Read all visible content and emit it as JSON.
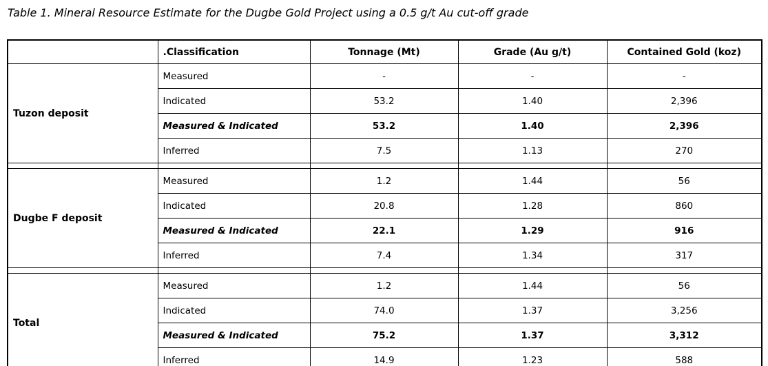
{
  "title": "Table 1. Mineral Resource Estimate for the Dugbe Gold Project using a 0.5 g/t Au cut-off grade",
  "table": {
    "columns": [
      "",
      ".Classification",
      "Tonnage (Mt)",
      "Grade (Au g/t)",
      "Contained Gold (koz)"
    ],
    "groups": [
      {
        "name": "Tuzon deposit",
        "rows": [
          {
            "classification": "Measured",
            "tonnage": "-",
            "grade": "-",
            "contained_gold": "-",
            "bold": false
          },
          {
            "classification": "Indicated",
            "tonnage": "53.2",
            "grade": "1.40",
            "contained_gold": "2,396",
            "bold": false
          },
          {
            "classification": "Measured & Indicated",
            "tonnage": "53.2",
            "grade": "1.40",
            "contained_gold": "2,396",
            "bold": true
          },
          {
            "classification": "Inferred",
            "tonnage": "7.5",
            "grade": "1.13",
            "contained_gold": "270",
            "bold": false
          }
        ]
      },
      {
        "name": "Dugbe F deposit",
        "rows": [
          {
            "classification": "Measured",
            "tonnage": "1.2",
            "grade": "1.44",
            "contained_gold": "56",
            "bold": false
          },
          {
            "classification": "Indicated",
            "tonnage": "20.8",
            "grade": "1.28",
            "contained_gold": "860",
            "bold": false
          },
          {
            "classification": "Measured & Indicated",
            "tonnage": "22.1",
            "grade": "1.29",
            "contained_gold": "916",
            "bold": true
          },
          {
            "classification": "Inferred",
            "tonnage": "7.4",
            "grade": "1.34",
            "contained_gold": "317",
            "bold": false
          }
        ]
      },
      {
        "name": "Total",
        "rows": [
          {
            "classification": "Measured",
            "tonnage": "1.2",
            "grade": "1.44",
            "contained_gold": "56",
            "bold": false
          },
          {
            "classification": "Indicated",
            "tonnage": "74.0",
            "grade": "1.37",
            "contained_gold": "3,256",
            "bold": false
          },
          {
            "classification": "Measured & Indicated",
            "tonnage": "75.2",
            "grade": "1.37",
            "contained_gold": "3,312",
            "bold": true
          },
          {
            "classification": "Inferred",
            "tonnage": "14.9",
            "grade": "1.23",
            "contained_gold": "588",
            "bold": false
          }
        ]
      }
    ]
  }
}
